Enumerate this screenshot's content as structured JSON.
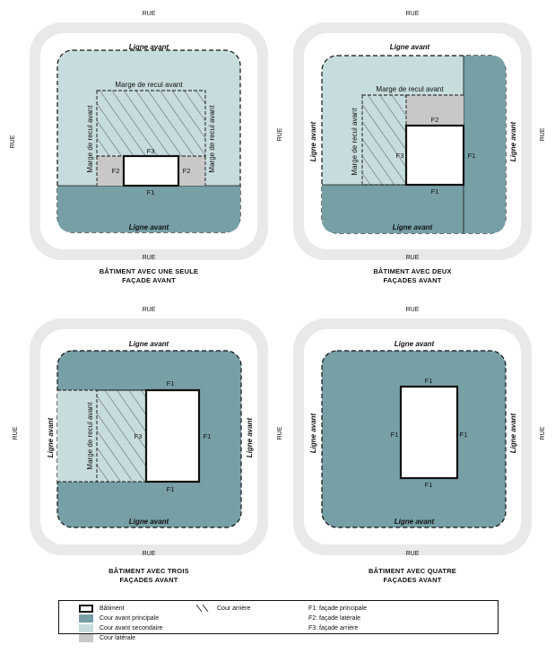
{
  "street": "RUE",
  "front_line": "Ligne avant",
  "front_setback": "Marge de recul avant",
  "codes": {
    "f1": "F1",
    "f2": "F2",
    "f3": "F3"
  },
  "captions": {
    "one": [
      "BÂTIMENT AVEC UNE SEULE",
      "FAÇADE AVANT"
    ],
    "two": [
      "BÂTIMENT AVEC DEUX",
      "FAÇADES AVANT"
    ],
    "three": [
      "BÂTIMENT AVEC TROIS",
      "FAÇADES AVANT"
    ],
    "four": [
      "BÂTIMENT AVEC QUATRE",
      "FAÇADES AVANT"
    ]
  },
  "legend": {
    "building": "Bâtiment",
    "main_front_yard": "Cour avant principale",
    "secondary_front_yard": "Cour avant secondaire",
    "side_yard": "Cour latérale",
    "rear_yard": "Cour arrière",
    "f1_def": "F1:  façade principale",
    "f2_def": "F2:  façade latérale",
    "f3_def": "F3:  façade arrière"
  },
  "colors": {
    "main_front_yard": "#76a0a6",
    "secondary_front_yard": "#c7dcdd",
    "side_yard": "#c8c8c8",
    "street_ring": "#e9e9e9",
    "building": "#ffffff",
    "line": "#111111"
  }
}
